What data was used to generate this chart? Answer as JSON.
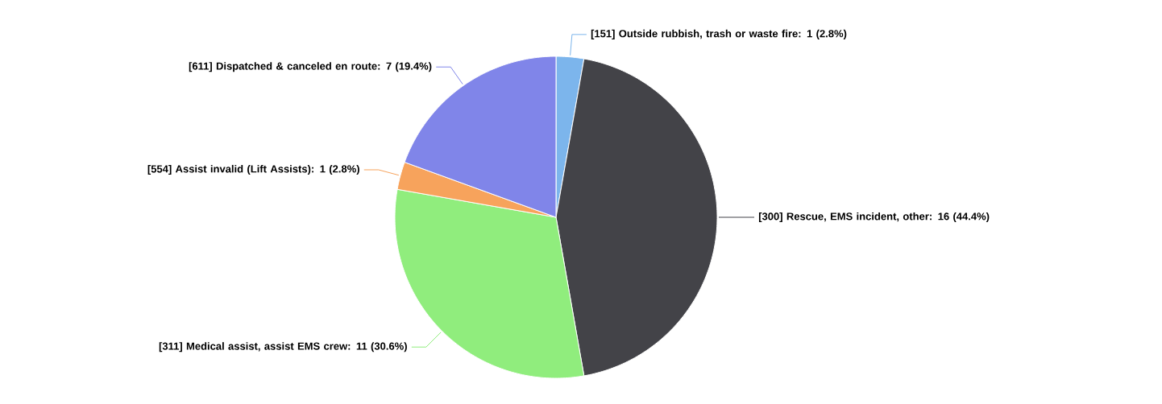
{
  "chart_data": {
    "type": "pie",
    "categories": [
      "[151] Outside rubbish, trash or waste fire: 1 (2.8%)",
      "[300] Rescue, EMS incident, other: 16 (44.4%)",
      "[311] Medical assist, assist EMS crew: 11 (30.6%)",
      "[554] Assist invalid  (Lift Assists): 1 (2.8%)",
      "[611] Dispatched & canceled en route: 7 (19.4%)"
    ],
    "values": [
      1,
      16,
      11,
      1,
      7
    ],
    "colors": [
      "#7cb5ec",
      "#434348",
      "#90ed7d",
      "#f7a35c",
      "#8085e9"
    ]
  }
}
